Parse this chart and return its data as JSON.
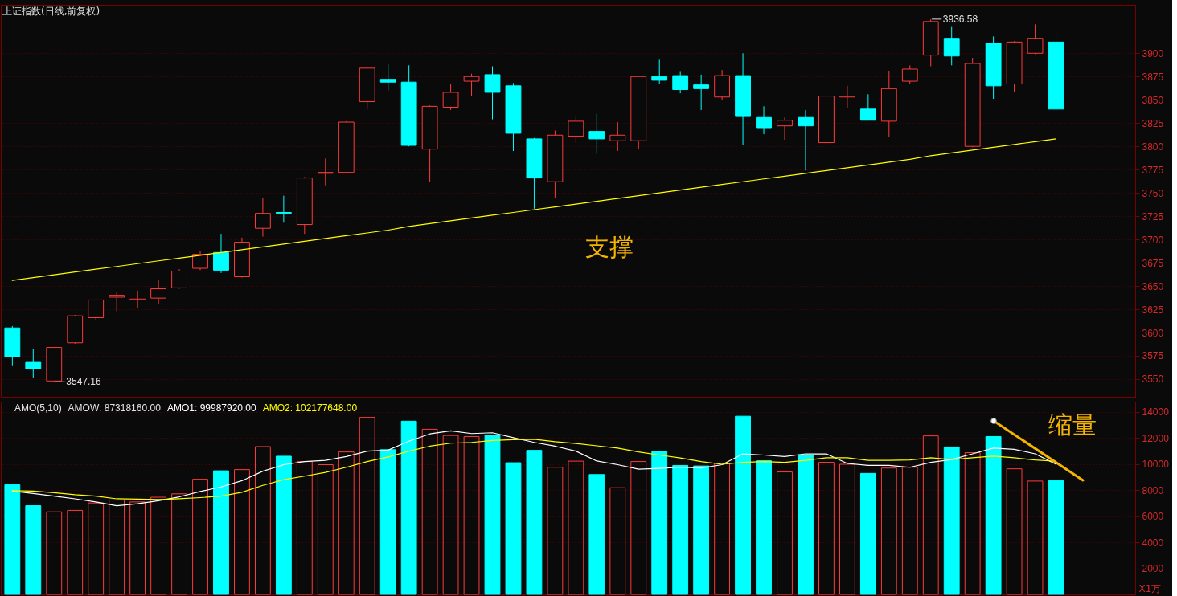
{
  "chart_data": [
    {
      "type": "candlestick",
      "title": "上证指数(日线,前复权)",
      "categories": [
        null,
        null,
        null,
        null,
        null,
        null,
        null,
        null,
        null,
        null,
        null,
        null,
        null,
        null,
        null,
        null,
        null,
        null,
        null,
        null,
        null,
        null,
        null,
        null,
        null,
        null,
        null,
        null,
        null,
        null,
        null,
        null,
        null,
        null,
        null,
        null,
        null,
        null,
        null,
        null,
        null,
        null,
        null,
        null,
        null,
        null,
        null,
        null,
        null,
        null,
        null
      ],
      "ohlc": [
        [
          3605,
          3607,
          3564,
          3574
        ],
        [
          3568,
          3582,
          3551,
          3561
        ],
        [
          3548,
          3584,
          3547.16,
          3584
        ],
        [
          3589,
          3619,
          3588,
          3618
        ],
        [
          3616,
          3635,
          3614,
          3635
        ],
        [
          3638,
          3644,
          3623,
          3640
        ],
        [
          3635,
          3645,
          3626,
          3636
        ],
        [
          3637,
          3656,
          3631,
          3647
        ],
        [
          3648,
          3668,
          3647,
          3666
        ],
        [
          3669,
          3688,
          3667,
          3684
        ],
        [
          3686,
          3706,
          3664,
          3667
        ],
        [
          3660,
          3702,
          3659,
          3697
        ],
        [
          3712,
          3745,
          3703,
          3728
        ],
        [
          3729,
          3747,
          3718,
          3728
        ],
        [
          3716,
          3767,
          3706,
          3766
        ],
        [
          3771,
          3787,
          3758,
          3772
        ],
        [
          3772,
          3827,
          3772,
          3826
        ],
        [
          3848,
          3884,
          3840,
          3884
        ],
        [
          3872,
          3888,
          3860,
          3869
        ],
        [
          3869,
          3887,
          3800,
          3801
        ],
        [
          3797,
          3844,
          3762,
          3843
        ],
        [
          3842,
          3867,
          3839,
          3858
        ],
        [
          3870,
          3878,
          3854,
          3875
        ],
        [
          3877,
          3886,
          3829,
          3858
        ],
        [
          3865,
          3868,
          3795,
          3814
        ],
        [
          3808,
          3809,
          3733,
          3766
        ],
        [
          3762,
          3817,
          3745,
          3812
        ],
        [
          3811,
          3832,
          3804,
          3827
        ],
        [
          3816,
          3835,
          3792,
          3808
        ],
        [
          3806,
          3826,
          3795,
          3812
        ],
        [
          3806,
          3876,
          3797,
          3875
        ],
        [
          3875,
          3893,
          3867,
          3871
        ],
        [
          3876,
          3880,
          3857,
          3861
        ],
        [
          3866,
          3877,
          3839,
          3862
        ],
        [
          3853,
          3882,
          3850,
          3876
        ],
        [
          3876,
          3900,
          3801,
          3832
        ],
        [
          3831,
          3843,
          3813,
          3820
        ],
        [
          3822,
          3831,
          3807,
          3828
        ],
        [
          3831,
          3839,
          3774,
          3822
        ],
        [
          3804,
          3854,
          3804,
          3854
        ],
        [
          3853,
          3865,
          3841,
          3854
        ],
        [
          3840,
          3856,
          3828,
          3828
        ],
        [
          3827,
          3881,
          3810,
          3862
        ],
        [
          3870,
          3887,
          3867,
          3883
        ],
        [
          3898,
          3936.58,
          3886,
          3934
        ],
        [
          3916,
          3929,
          3887,
          3897
        ],
        [
          3800,
          3895,
          3799,
          3889
        ],
        [
          3911,
          3918,
          3851,
          3865
        ],
        [
          3867,
          3913,
          3858,
          3912
        ],
        [
          3900,
          3931,
          3899,
          3916
        ],
        [
          3912,
          3921,
          3836,
          3840
        ]
      ],
      "value_labels": [
        null,
        null,
        "3547.16",
        null,
        null,
        null,
        null,
        null,
        null,
        null,
        null,
        null,
        null,
        null,
        null,
        null,
        null,
        null,
        null,
        null,
        null,
        null,
        null,
        null,
        null,
        null,
        null,
        null,
        null,
        null,
        null,
        null,
        null,
        null,
        null,
        null,
        null,
        null,
        null,
        null,
        null,
        null,
        null,
        null,
        "3936.58",
        null,
        null,
        null,
        null,
        null,
        null
      ],
      "colors": [
        "#00ffff",
        "#00ffff",
        "#ff3b3b",
        "#ff3b3b",
        "#ff3b3b",
        "#ff3b3b",
        "#ff3b3b",
        "#ff3b3b",
        "#ff3b3b",
        "#ff3b3b",
        "#00ffff",
        "#ff3b3b",
        "#ff3b3b",
        "#00ffff",
        "#ff3b3b",
        "#ff3b3b",
        "#ff3b3b",
        "#ff3b3b",
        "#00ffff",
        "#00ffff",
        "#ff3b3b",
        "#ff3b3b",
        "#ff3b3b",
        "#00ffff",
        "#00ffff",
        "#00ffff",
        "#ff3b3b",
        "#ff3b3b",
        "#00ffff",
        "#ff3b3b",
        "#ff3b3b",
        "#00ffff",
        "#00ffff",
        "#00ffff",
        "#ff3b3b",
        "#00ffff",
        "#00ffff",
        "#ff3b3b",
        "#00ffff",
        "#ff3b3b",
        "#ff3b3b",
        "#00ffff",
        "#ff3b3b",
        "#ff3b3b",
        "#ff3b3b",
        "#00ffff",
        "#ff3b3b",
        "#00ffff",
        "#ff3b3b",
        "#ff3b3b",
        "#00ffff"
      ],
      "series": [
        {
          "type": "line",
          "color": "#ffff00",
          "values": [
            3656,
            3659,
            3662,
            3665,
            3668,
            3671,
            3674,
            3677,
            3680,
            3683,
            3686,
            3689,
            3692,
            3695,
            3698,
            3701,
            3704,
            3707,
            3710,
            3714,
            3717,
            3720,
            3723,
            3726,
            3729,
            3732,
            3735,
            3738,
            3741,
            3744,
            3747,
            3750,
            3753,
            3756,
            3759,
            3762,
            3765,
            3768,
            3771,
            3774,
            3777,
            3780,
            3783,
            3786,
            3790,
            3793,
            3796,
            3799,
            3802,
            3805,
            3808
          ]
        }
      ],
      "ylim": [
        3531,
        3952
      ],
      "yticks": [
        3550,
        3575,
        3600,
        3625,
        3650,
        3675,
        3700,
        3725,
        3750,
        3775,
        3800,
        3825,
        3850,
        3875,
        3900
      ],
      "grid": "y",
      "tick_labels": "y",
      "annotations": [
        "支撑"
      ]
    },
    {
      "type": "bar",
      "title": "AMO(5,10)",
      "subtitle": "AMOW: 87318160.00",
      "ylabel": "X1万",
      "categories": [
        null,
        null,
        null,
        null,
        null,
        null,
        null,
        null,
        null,
        null,
        null,
        null,
        null,
        null,
        null,
        null,
        null,
        null,
        null,
        null,
        null,
        null,
        null,
        null,
        null,
        null,
        null,
        null,
        null,
        null,
        null,
        null,
        null,
        null,
        null,
        null,
        null,
        null,
        null,
        null,
        null,
        null,
        null,
        null,
        null,
        null,
        null,
        null,
        null,
        null,
        null
      ],
      "series": [
        {
          "type": "bar",
          "colors": [
            "#00ffff",
            "#00ffff",
            "#ff3b3b",
            "#ff3b3b",
            "#ff3b3b",
            "#ff3b3b",
            "#ff3b3b",
            "#ff3b3b",
            "#ff3b3b",
            "#ff3b3b",
            "#00ffff",
            "#ff3b3b",
            "#ff3b3b",
            "#00ffff",
            "#ff3b3b",
            "#ff3b3b",
            "#ff3b3b",
            "#ff3b3b",
            "#00ffff",
            "#00ffff",
            "#ff3b3b",
            "#ff3b3b",
            "#ff3b3b",
            "#00ffff",
            "#00ffff",
            "#00ffff",
            "#ff3b3b",
            "#ff3b3b",
            "#00ffff",
            "#ff3b3b",
            "#ff3b3b",
            "#00ffff",
            "#00ffff",
            "#00ffff",
            "#ff3b3b",
            "#00ffff",
            "#00ffff",
            "#ff3b3b",
            "#00ffff",
            "#ff3b3b",
            "#ff3b3b",
            "#00ffff",
            "#ff3b3b",
            "#ff3b3b",
            "#ff3b3b",
            "#00ffff",
            "#ff3b3b",
            "#00ffff",
            "#ff3b3b",
            "#ff3b3b",
            "#00ffff"
          ],
          "values": [
            8420,
            6810,
            6340,
            6450,
            7020,
            7250,
            7100,
            7460,
            7720,
            8840,
            9490,
            9580,
            11350,
            10610,
            10200,
            9960,
            10940,
            13590,
            11110,
            13300,
            12680,
            12200,
            12120,
            12230,
            10110,
            11060,
            9760,
            10230,
            9200,
            8190,
            10200,
            10970,
            9900,
            9860,
            10080,
            13680,
            10260,
            9400,
            10700,
            10140,
            9990,
            9290,
            9700,
            9760,
            12170,
            11320,
            10880,
            12120,
            9640,
            8700,
            8730
          ]
        },
        {
          "type": "line",
          "name": "AMO1: 99987920.00",
          "color": "#ffffff",
          "values": [
            7930,
            7750,
            7550,
            7340,
            7100,
            6810,
            6960,
            7190,
            7490,
            7900,
            8250,
            8730,
            9460,
            9960,
            10200,
            10290,
            10580,
            11000,
            11080,
            11760,
            12320,
            12560,
            12350,
            12410,
            12030,
            11670,
            11380,
            11000,
            10240,
            9960,
            9610,
            9670,
            9760,
            9700,
            9960,
            10790,
            10700,
            10580,
            10790,
            10790,
            10050,
            9900,
            9900,
            9760,
            10140,
            10350,
            10790,
            11230,
            11140,
            10790,
            10000
          ]
        },
        {
          "type": "line",
          "name": "AMO2: 102177648.00",
          "color": "#ffff00",
          "values": [
            7960,
            7930,
            7810,
            7660,
            7550,
            7340,
            7310,
            7280,
            7340,
            7430,
            7550,
            7840,
            8370,
            8810,
            9080,
            9370,
            9760,
            10200,
            10550,
            11000,
            11380,
            11610,
            11670,
            11820,
            11880,
            11910,
            11730,
            11590,
            11410,
            11230,
            10940,
            10700,
            10470,
            10200,
            9990,
            10140,
            10200,
            10140,
            10290,
            10490,
            10490,
            10290,
            10290,
            10320,
            10490,
            10350,
            10490,
            10610,
            10490,
            10320,
            10220
          ]
        }
      ],
      "ylim": [
        0,
        14800
      ],
      "yticks": [
        2000,
        4000,
        6000,
        8000,
        10000,
        12000,
        14000
      ],
      "grid": "y",
      "tick_labels": "y",
      "legend": "top left",
      "annotations": [
        "缩量"
      ]
    }
  ]
}
